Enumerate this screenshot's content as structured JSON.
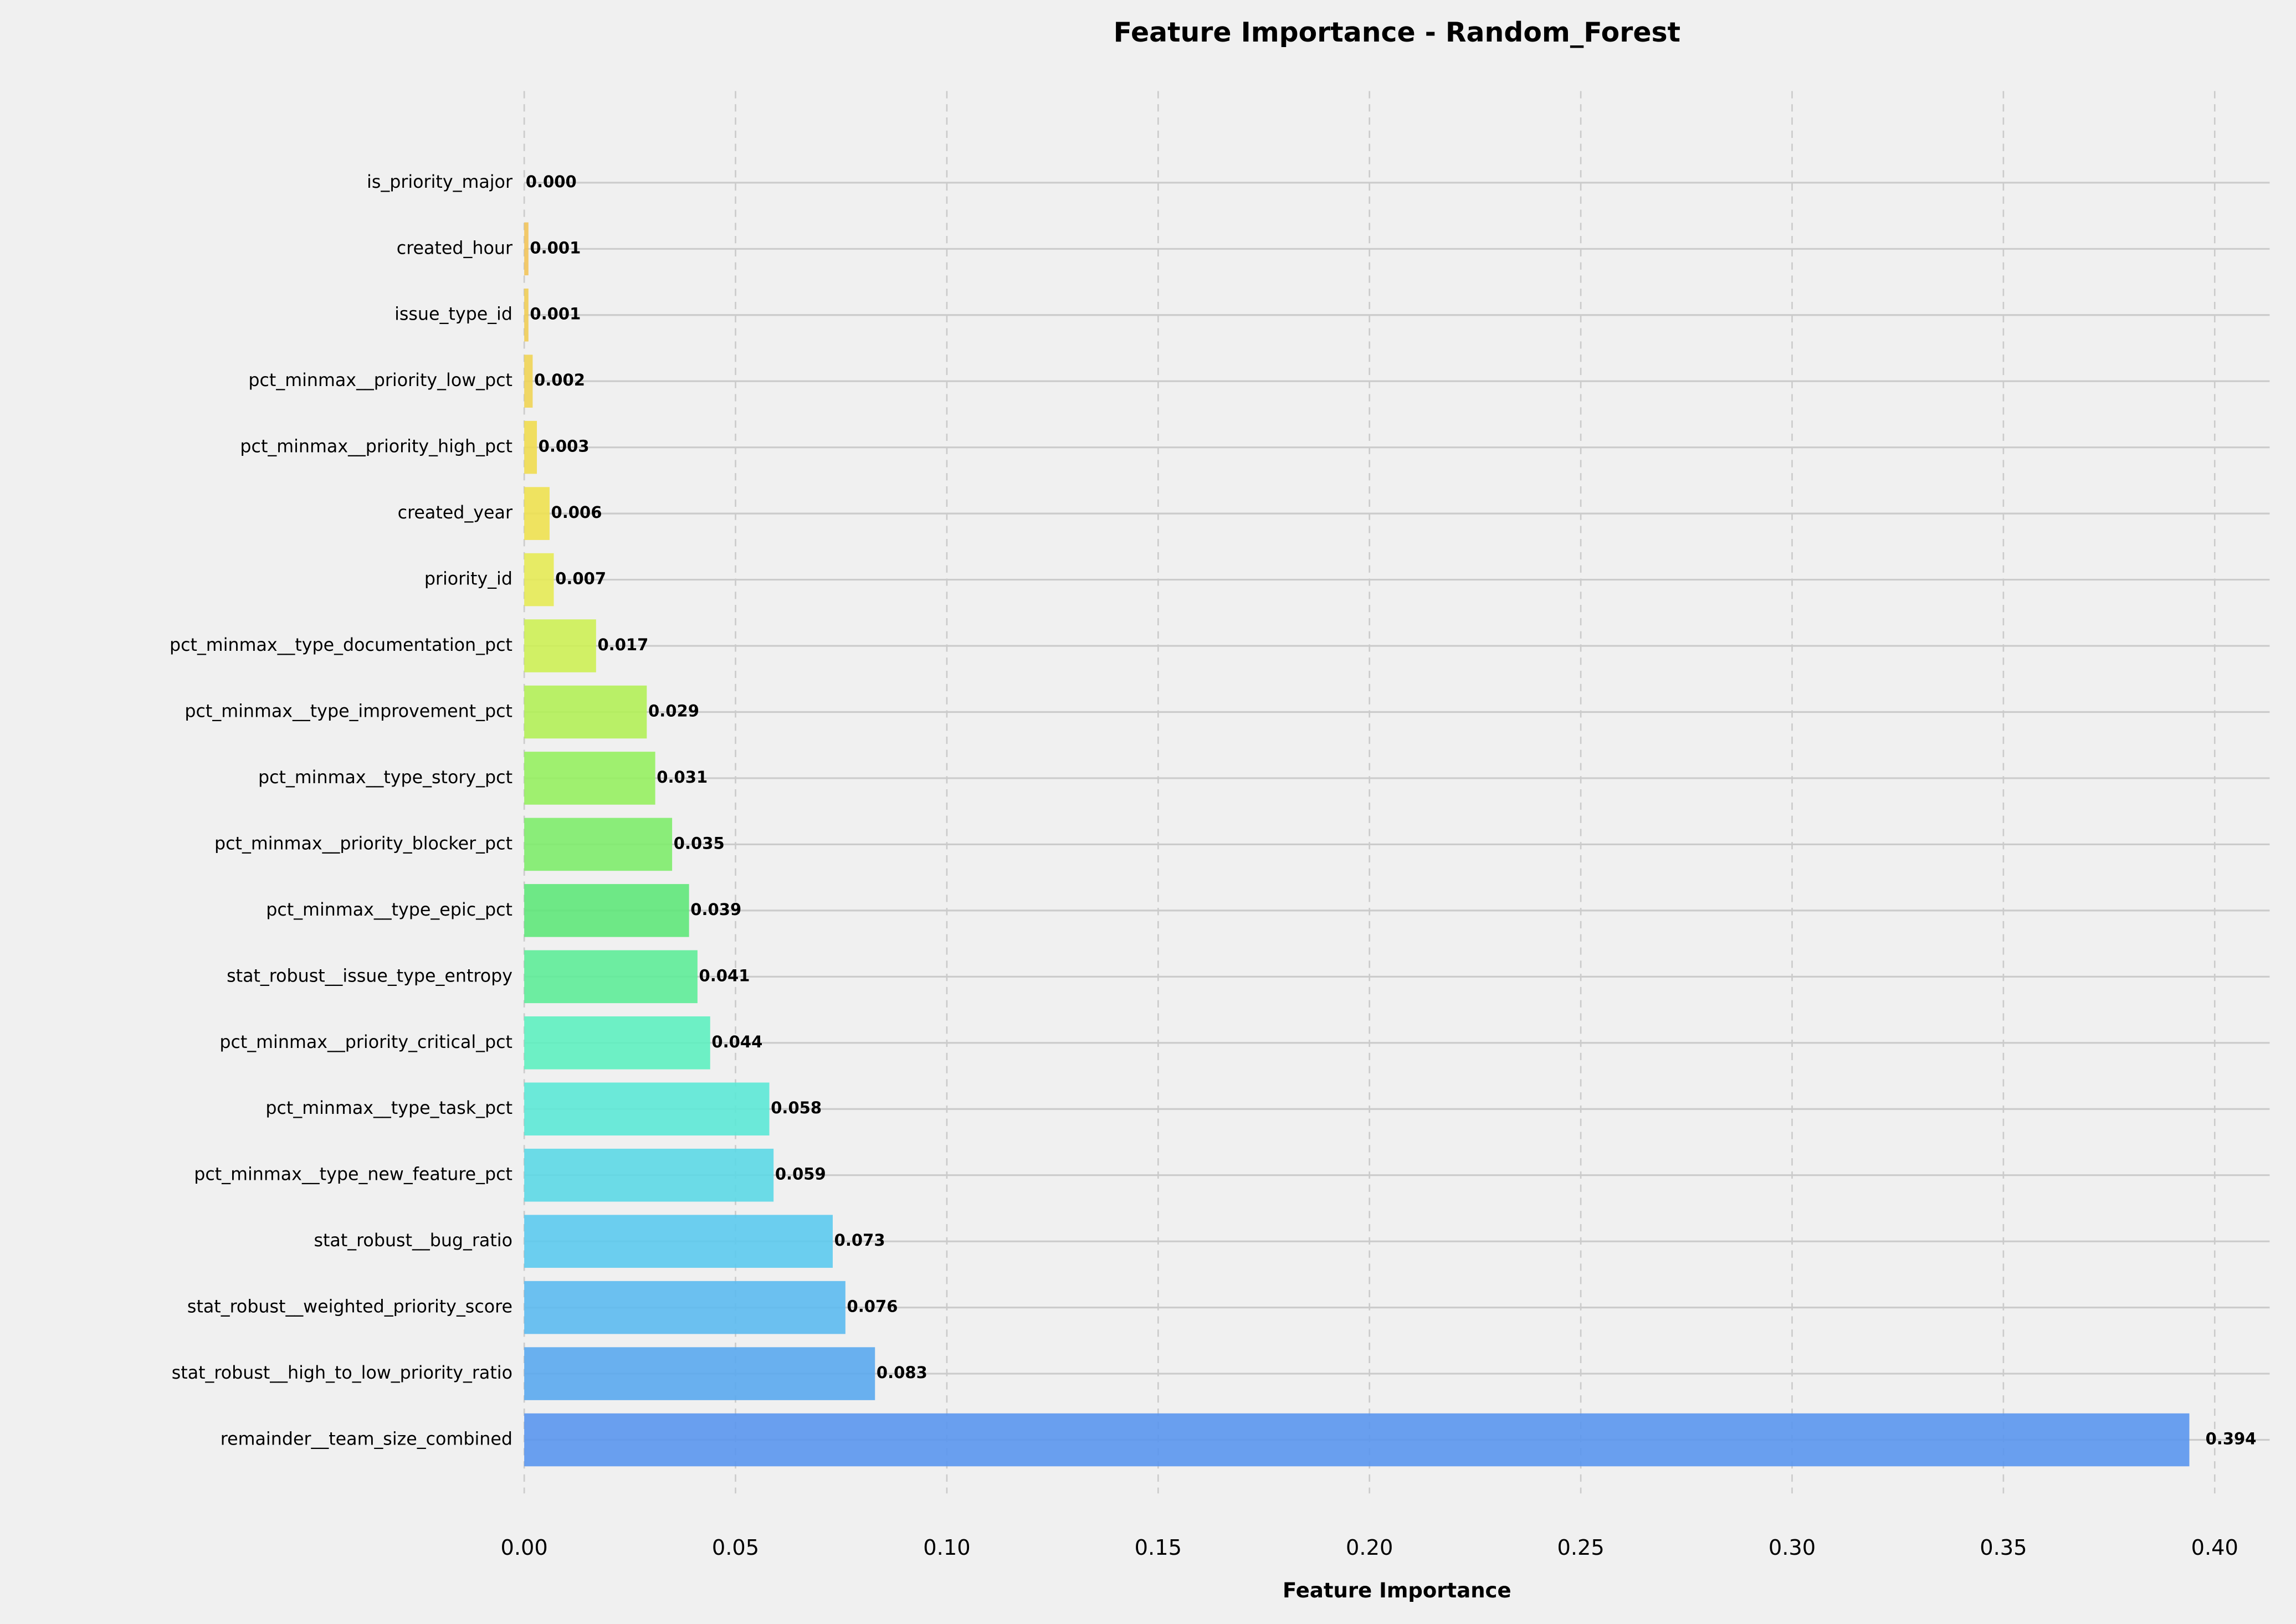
{
  "chart_data": {
    "type": "barh",
    "title": "Feature Importance - Random_Forest",
    "x_label": "Feature Importance",
    "categories": [
      "is_priority_major",
      "created_hour",
      "issue_type_id",
      "pct_minmax__priority_low_pct",
      "pct_minmax__priority_high_pct",
      "created_year",
      "priority_id",
      "pct_minmax__type_documentation_pct",
      "pct_minmax__type_improvement_pct",
      "pct_minmax__type_story_pct",
      "pct_minmax__priority_blocker_pct",
      "pct_minmax__type_epic_pct",
      "stat_robust__issue_type_entropy",
      "pct_minmax__priority_critical_pct",
      "pct_minmax__type_task_pct",
      "pct_minmax__type_new_feature_pct",
      "stat_robust__bug_ratio",
      "stat_robust__weighted_priority_score",
      "stat_robust__high_to_low_priority_ratio",
      "remainder__team_size_combined"
    ],
    "values": [
      0,
      0.001,
      0.001,
      0.002,
      0.003,
      0.006,
      0.007,
      0.017,
      0.029,
      0.031,
      0.035,
      0.039,
      0.041,
      0.044,
      0.058,
      0.059,
      0.073,
      0.076,
      0.083,
      0.394
    ],
    "value_labels": [
      "0.000",
      "0.001",
      "0.001",
      "0.002",
      "0.003",
      "0.006",
      "0.007",
      "0.017",
      "0.029",
      "0.031",
      "0.035",
      "0.039",
      "0.041",
      "0.044",
      "0.058",
      "0.059",
      "0.073",
      "0.076",
      "0.083",
      "0.394"
    ],
    "colors": [
      "#f4b860",
      "#f2c45a",
      "#f0cd55",
      "#f0d455",
      "#efdb50",
      "#eee150",
      "#e6ea55",
      "#cdef55",
      "#b2f058",
      "#96ef60",
      "#7eec6c",
      "#5fe77a",
      "#5eec98",
      "#5ef0c0",
      "#5ce8d6",
      "#5cd8e6",
      "#5ccaee",
      "#5cbaf0",
      "#5aa8ee",
      "#5a96ee"
    ],
    "xlim": [
      0,
      0.413
    ],
    "xticks": [
      {
        "value": 0,
        "label": "0.00"
      },
      0.05,
      {
        "value": 0.1,
        "label": "0.10"
      },
      0.15,
      {
        "value": 0.2,
        "label": "0.20"
      },
      0.25,
      {
        "value": 0.3,
        "label": "0.30"
      },
      0.35,
      {
        "value": 0.4,
        "label": "0.40"
      }
    ],
    "grid": true
  }
}
